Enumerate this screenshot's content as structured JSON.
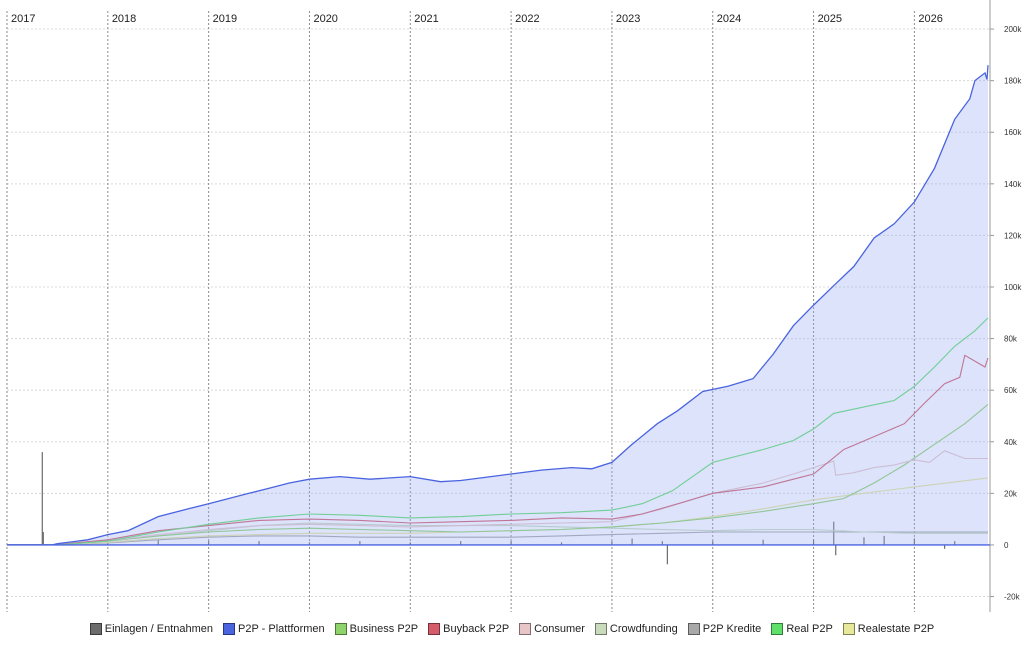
{
  "chart_data": {
    "type": "area",
    "x_axis": {
      "year_labels": [
        "2017",
        "2018",
        "2019",
        "2020",
        "2021",
        "2022",
        "2023",
        "2024",
        "2025",
        "2026"
      ],
      "range": [
        2017.0,
        2026.75
      ]
    },
    "y_axis": {
      "tick_values": [
        -20000,
        0,
        20000,
        40000,
        60000,
        80000,
        100000,
        120000,
        140000,
        160000,
        180000,
        200000
      ],
      "tick_labels": [
        "-20k",
        "0",
        "20k",
        "40k",
        "60k",
        "80k",
        "100k",
        "120k",
        "140k",
        "160k",
        "180k",
        "200k"
      ],
      "range": [
        -26000,
        207000
      ],
      "position": "right"
    },
    "grid": true,
    "legend_position": "bottom",
    "series": [
      {
        "name": "Einlagen / Entnahmen",
        "color": "#6b6b6b",
        "kind": "bars",
        "points": [
          [
            2017.35,
            36000
          ],
          [
            2017.36,
            5000
          ],
          [
            2017.7,
            1000
          ],
          [
            2018.0,
            1500
          ],
          [
            2018.5,
            2000
          ],
          [
            2019.0,
            1500
          ],
          [
            2019.5,
            1500
          ],
          [
            2020.0,
            1000
          ],
          [
            2020.5,
            1500
          ],
          [
            2021.0,
            1000
          ],
          [
            2021.5,
            1500
          ],
          [
            2022.0,
            1500
          ],
          [
            2022.5,
            1000
          ],
          [
            2023.0,
            1500
          ],
          [
            2023.2,
            2500
          ],
          [
            2023.5,
            1500
          ],
          [
            2023.55,
            -7500
          ],
          [
            2024.0,
            1500
          ],
          [
            2024.5,
            2000
          ],
          [
            2025.0,
            2000
          ],
          [
            2025.2,
            9000
          ],
          [
            2025.22,
            -4000
          ],
          [
            2025.5,
            3000
          ],
          [
            2025.7,
            3500
          ],
          [
            2026.0,
            2500
          ],
          [
            2026.3,
            -1500
          ],
          [
            2026.4,
            1500
          ]
        ]
      },
      {
        "name": "P2P - Plattformen",
        "color": "#4a64e0",
        "fill": "rgba(150,170,240,0.33)",
        "points": [
          [
            2017.0,
            0
          ],
          [
            2017.45,
            0
          ],
          [
            2017.5,
            500
          ],
          [
            2017.6,
            1000
          ],
          [
            2017.8,
            2000
          ],
          [
            2018.0,
            4000
          ],
          [
            2018.2,
            5500
          ],
          [
            2018.5,
            11000
          ],
          [
            2018.8,
            14000
          ],
          [
            2019.0,
            16000
          ],
          [
            2019.2,
            18000
          ],
          [
            2019.4,
            20000
          ],
          [
            2019.6,
            22000
          ],
          [
            2019.8,
            24000
          ],
          [
            2020.0,
            25500
          ],
          [
            2020.3,
            26500
          ],
          [
            2020.6,
            25500
          ],
          [
            2020.8,
            26000
          ],
          [
            2021.0,
            26500
          ],
          [
            2021.3,
            24500
          ],
          [
            2021.5,
            25000
          ],
          [
            2021.8,
            26500
          ],
          [
            2022.0,
            27500
          ],
          [
            2022.3,
            29000
          ],
          [
            2022.6,
            30000
          ],
          [
            2022.8,
            29500
          ],
          [
            2023.0,
            32000
          ],
          [
            2023.2,
            39000
          ],
          [
            2023.45,
            47000
          ],
          [
            2023.65,
            52000
          ],
          [
            2023.9,
            59500
          ],
          [
            2024.15,
            61500
          ],
          [
            2024.4,
            64500
          ],
          [
            2024.6,
            74000
          ],
          [
            2024.8,
            85000
          ],
          [
            2025.0,
            93000
          ],
          [
            2025.2,
            100500
          ],
          [
            2025.4,
            108000
          ],
          [
            2025.6,
            119000
          ],
          [
            2025.8,
            124500
          ],
          [
            2026.0,
            133000
          ],
          [
            2026.2,
            146000
          ],
          [
            2026.4,
            165000
          ],
          [
            2026.55,
            173000
          ],
          [
            2026.6,
            180000
          ],
          [
            2026.7,
            183000
          ],
          [
            2026.72,
            180500
          ],
          [
            2026.73,
            186000
          ]
        ]
      },
      {
        "name": "Business P2P",
        "color": "#8fd46b",
        "points": [
          [
            2017.0,
            0
          ],
          [
            2017.45,
            0
          ],
          [
            2017.6,
            300
          ],
          [
            2018.0,
            1500
          ],
          [
            2018.5,
            3500
          ],
          [
            2019.0,
            5000
          ],
          [
            2019.5,
            6000
          ],
          [
            2020.0,
            6500
          ],
          [
            2020.5,
            6000
          ],
          [
            2021.0,
            5500
          ],
          [
            2021.5,
            5000
          ],
          [
            2022.0,
            5500
          ],
          [
            2022.5,
            6000
          ],
          [
            2023.0,
            7000
          ],
          [
            2023.5,
            8500
          ],
          [
            2024.0,
            10500
          ],
          [
            2024.5,
            13000
          ],
          [
            2025.0,
            16000
          ],
          [
            2025.3,
            18000
          ],
          [
            2025.6,
            24000
          ],
          [
            2025.9,
            31000
          ],
          [
            2026.2,
            39000
          ],
          [
            2026.5,
            47000
          ],
          [
            2026.73,
            54500
          ]
        ]
      },
      {
        "name": "Buyback P2P",
        "color": "#d65c6c",
        "points": [
          [
            2017.0,
            0
          ],
          [
            2017.45,
            0
          ],
          [
            2017.6,
            500
          ],
          [
            2018.0,
            2000
          ],
          [
            2018.5,
            5500
          ],
          [
            2019.0,
            7500
          ],
          [
            2019.5,
            9500
          ],
          [
            2020.0,
            10000
          ],
          [
            2020.5,
            9500
          ],
          [
            2021.0,
            8500
          ],
          [
            2021.5,
            9000
          ],
          [
            2022.0,
            9500
          ],
          [
            2022.5,
            10500
          ],
          [
            2023.0,
            10000
          ],
          [
            2023.3,
            12000
          ],
          [
            2023.7,
            16500
          ],
          [
            2024.0,
            20000
          ],
          [
            2024.5,
            22500
          ],
          [
            2024.8,
            25500
          ],
          [
            2025.0,
            27500
          ],
          [
            2025.3,
            37000
          ],
          [
            2025.6,
            42000
          ],
          [
            2025.9,
            47000
          ],
          [
            2026.1,
            55000
          ],
          [
            2026.3,
            62500
          ],
          [
            2026.45,
            65000
          ],
          [
            2026.5,
            73500
          ],
          [
            2026.7,
            69000
          ],
          [
            2026.73,
            72500
          ]
        ]
      },
      {
        "name": "Consumer",
        "color": "#e8c6c8",
        "points": [
          [
            2017.0,
            0
          ],
          [
            2017.45,
            0
          ],
          [
            2017.6,
            300
          ],
          [
            2018.0,
            1500
          ],
          [
            2018.5,
            4000
          ],
          [
            2019.0,
            6000
          ],
          [
            2019.5,
            7500
          ],
          [
            2020.0,
            8000
          ],
          [
            2020.5,
            7500
          ],
          [
            2021.0,
            7000
          ],
          [
            2021.5,
            7500
          ],
          [
            2022.0,
            8000
          ],
          [
            2022.5,
            8500
          ],
          [
            2023.0,
            9000
          ],
          [
            2023.5,
            14000
          ],
          [
            2024.0,
            20000
          ],
          [
            2024.5,
            24000
          ],
          [
            2024.8,
            27500
          ],
          [
            2025.0,
            30000
          ],
          [
            2025.2,
            32500
          ],
          [
            2025.22,
            27000
          ],
          [
            2025.4,
            28000
          ],
          [
            2025.6,
            30000
          ],
          [
            2025.8,
            31000
          ],
          [
            2026.0,
            33000
          ],
          [
            2026.15,
            32000
          ],
          [
            2026.3,
            36500
          ],
          [
            2026.5,
            33500
          ],
          [
            2026.73,
            33500
          ]
        ]
      },
      {
        "name": "Crowdfunding",
        "color": "#c8dcbc",
        "points": [
          [
            2017.0,
            0
          ],
          [
            2017.45,
            0
          ],
          [
            2017.6,
            300
          ],
          [
            2018.0,
            1500
          ],
          [
            2018.5,
            3500
          ],
          [
            2019.0,
            5500
          ],
          [
            2019.5,
            7500
          ],
          [
            2020.0,
            8500
          ],
          [
            2020.5,
            8000
          ],
          [
            2021.0,
            7500
          ],
          [
            2021.5,
            7500
          ],
          [
            2022.0,
            7500
          ],
          [
            2022.5,
            7000
          ],
          [
            2023.0,
            6500
          ],
          [
            2023.5,
            6000
          ],
          [
            2024.0,
            5500
          ],
          [
            2024.5,
            6000
          ],
          [
            2025.0,
            6000
          ],
          [
            2025.5,
            5000
          ],
          [
            2026.0,
            4500
          ],
          [
            2026.73,
            4500
          ]
        ]
      },
      {
        "name": "P2P Kredite",
        "color": "#a8a8a8",
        "points": [
          [
            2017.0,
            0
          ],
          [
            2017.45,
            0
          ],
          [
            2017.6,
            200
          ],
          [
            2018.0,
            800
          ],
          [
            2018.5,
            2000
          ],
          [
            2019.0,
            3000
          ],
          [
            2019.5,
            3500
          ],
          [
            2020.0,
            3500
          ],
          [
            2020.5,
            3000
          ],
          [
            2021.0,
            3000
          ],
          [
            2021.5,
            3000
          ],
          [
            2022.0,
            3000
          ],
          [
            2022.5,
            3500
          ],
          [
            2023.0,
            4000
          ],
          [
            2023.5,
            4500
          ],
          [
            2024.0,
            5000
          ],
          [
            2024.5,
            5000
          ],
          [
            2025.0,
            5000
          ],
          [
            2025.5,
            5000
          ],
          [
            2026.0,
            5000
          ],
          [
            2026.73,
            5000
          ]
        ]
      },
      {
        "name": "Real P2P",
        "color": "#5ee06a",
        "points": [
          [
            2017.0,
            0
          ],
          [
            2017.45,
            0
          ],
          [
            2017.6,
            300
          ],
          [
            2018.0,
            1500
          ],
          [
            2018.5,
            5000
          ],
          [
            2019.0,
            8000
          ],
          [
            2019.5,
            10500
          ],
          [
            2020.0,
            12000
          ],
          [
            2020.5,
            11500
          ],
          [
            2021.0,
            10500
          ],
          [
            2021.5,
            11000
          ],
          [
            2022.0,
            12000
          ],
          [
            2022.5,
            12500
          ],
          [
            2023.0,
            13500
          ],
          [
            2023.3,
            16000
          ],
          [
            2023.6,
            21000
          ],
          [
            2024.0,
            32000
          ],
          [
            2024.5,
            37000
          ],
          [
            2024.8,
            40500
          ],
          [
            2025.0,
            45000
          ],
          [
            2025.2,
            51000
          ],
          [
            2025.5,
            53500
          ],
          [
            2025.8,
            56000
          ],
          [
            2026.0,
            61500
          ],
          [
            2026.2,
            69000
          ],
          [
            2026.4,
            77000
          ],
          [
            2026.6,
            83000
          ],
          [
            2026.73,
            88000
          ]
        ]
      },
      {
        "name": "Realestate P2P",
        "color": "#e8e89a",
        "points": [
          [
            2017.0,
            0
          ],
          [
            2017.45,
            0
          ],
          [
            2017.6,
            200
          ],
          [
            2018.0,
            1000
          ],
          [
            2018.5,
            2500
          ],
          [
            2019.0,
            3500
          ],
          [
            2019.5,
            4000
          ],
          [
            2020.0,
            4500
          ],
          [
            2020.5,
            4500
          ],
          [
            2021.0,
            4500
          ],
          [
            2021.5,
            5000
          ],
          [
            2022.0,
            5500
          ],
          [
            2022.5,
            6000
          ],
          [
            2023.0,
            7000
          ],
          [
            2023.5,
            8500
          ],
          [
            2024.0,
            11000
          ],
          [
            2024.5,
            14000
          ],
          [
            2025.0,
            17500
          ],
          [
            2025.5,
            20000
          ],
          [
            2026.0,
            22500
          ],
          [
            2026.73,
            26000
          ]
        ]
      }
    ]
  }
}
